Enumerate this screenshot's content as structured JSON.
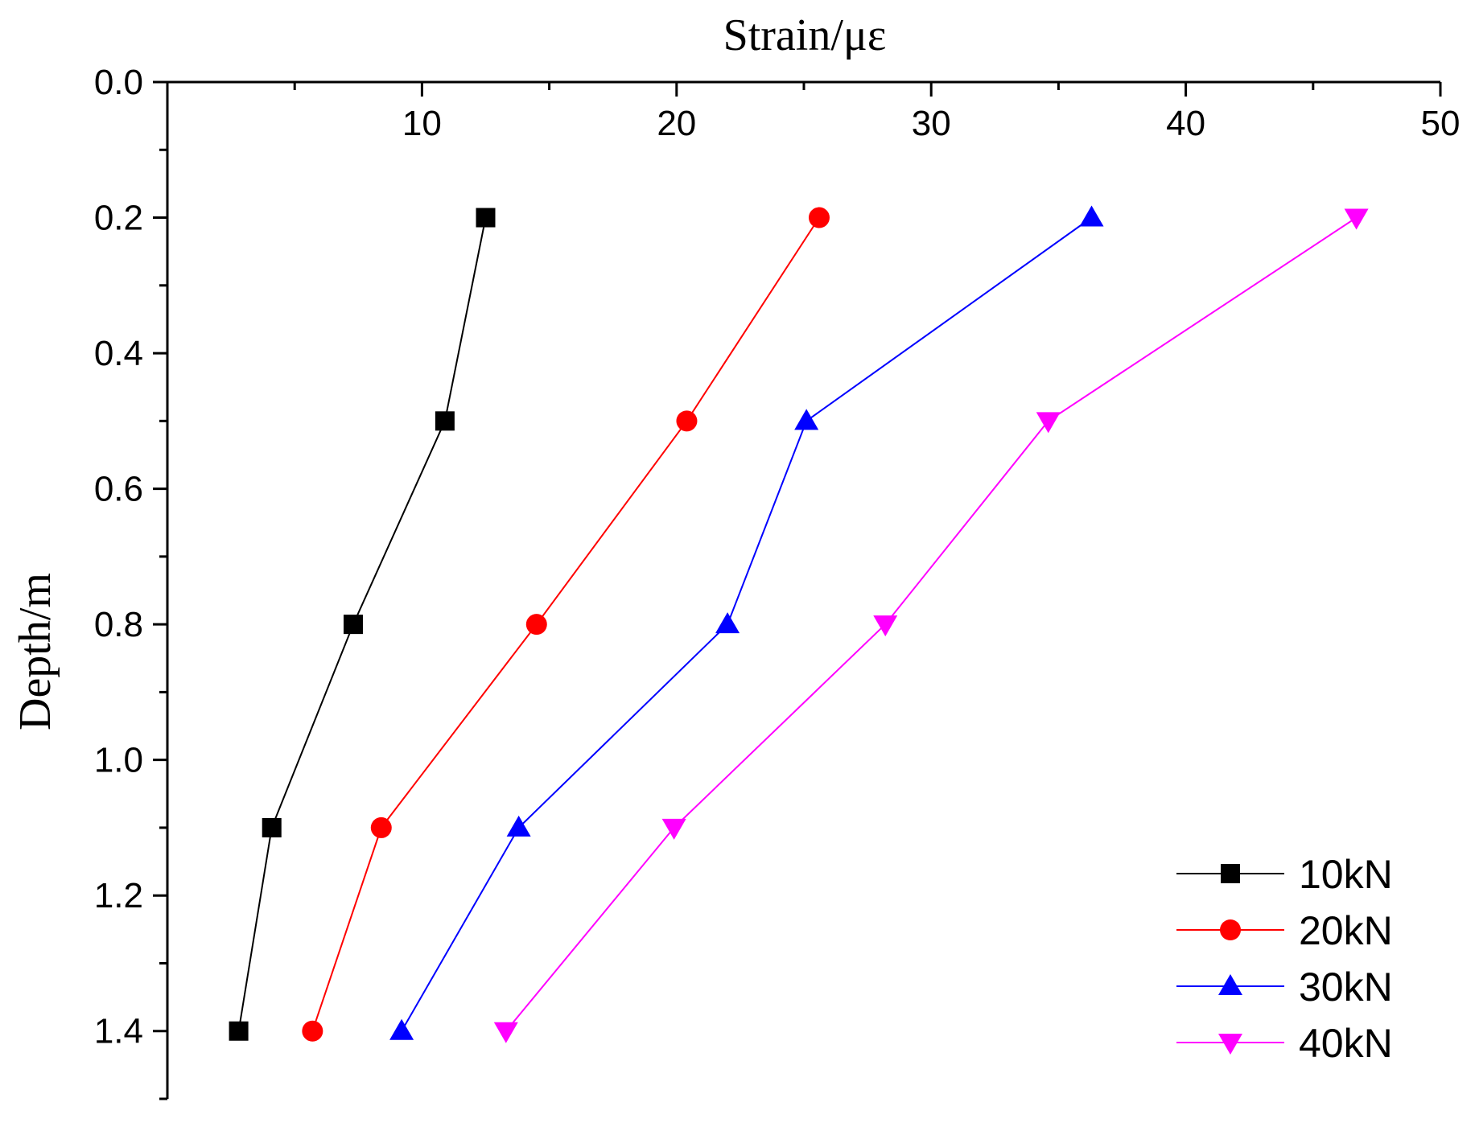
{
  "chart_data": {
    "type": "line",
    "xlabel": "Strain/με",
    "ylabel": "Depth/m",
    "xlim": [
      0,
      50
    ],
    "ylim": [
      0,
      1.5
    ],
    "x_axis_position": "top",
    "y_axis_inverted": true,
    "x_ticks": [
      10,
      20,
      30,
      40,
      50
    ],
    "x_tick_labels": [
      "10",
      "20",
      "30",
      "40",
      "50"
    ],
    "y_ticks": [
      0.0,
      0.2,
      0.4,
      0.6,
      0.8,
      1.0,
      1.2,
      1.4
    ],
    "y_tick_labels": [
      "0.0",
      "0.2",
      "0.4",
      "0.6",
      "0.8",
      "1.0",
      "1.2",
      "1.4"
    ],
    "legend_position": "bottom-right",
    "series": [
      {
        "name": "10kN",
        "color": "#000000",
        "marker": "square",
        "points": [
          [
            12.5,
            0.2
          ],
          [
            10.9,
            0.5
          ],
          [
            7.3,
            0.8
          ],
          [
            4.1,
            1.1
          ],
          [
            2.8,
            1.4
          ]
        ]
      },
      {
        "name": "20kN",
        "color": "#ff0000",
        "marker": "circle",
        "points": [
          [
            25.6,
            0.2
          ],
          [
            20.4,
            0.5
          ],
          [
            14.5,
            0.8
          ],
          [
            8.4,
            1.1
          ],
          [
            5.7,
            1.4
          ]
        ]
      },
      {
        "name": "30kN",
        "color": "#0000ff",
        "marker": "triangle-up",
        "points": [
          [
            36.3,
            0.2
          ],
          [
            25.1,
            0.5
          ],
          [
            22.0,
            0.8
          ],
          [
            13.8,
            1.1
          ],
          [
            9.2,
            1.4
          ]
        ]
      },
      {
        "name": "40kN",
        "color": "#ff00ff",
        "marker": "triangle-down",
        "points": [
          [
            46.7,
            0.2
          ],
          [
            34.6,
            0.5
          ],
          [
            28.2,
            0.8
          ],
          [
            19.9,
            1.1
          ],
          [
            13.3,
            1.4
          ]
        ]
      }
    ]
  }
}
